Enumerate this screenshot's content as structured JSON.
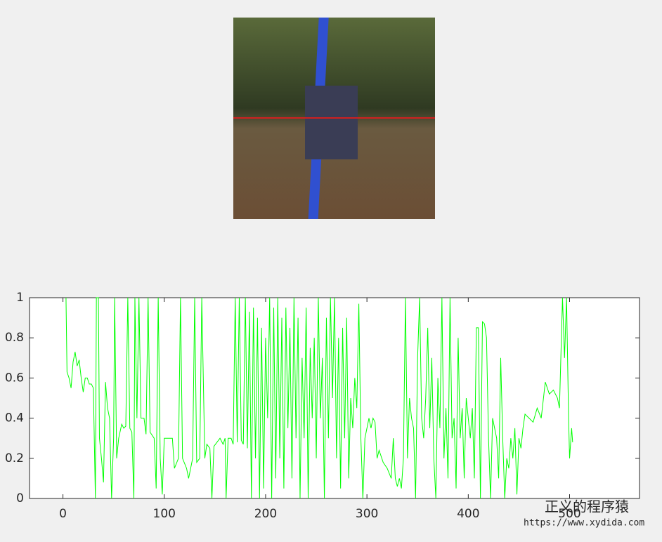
{
  "chart_data": {
    "type": "line",
    "color": "#00ff00",
    "x": [
      3,
      4,
      6,
      8,
      10,
      12,
      14,
      16,
      18,
      20,
      22,
      24,
      26,
      28,
      30,
      32,
      33,
      35,
      36,
      38,
      40,
      42,
      44,
      46,
      48,
      50,
      51,
      53,
      55,
      58,
      60,
      62,
      64,
      66,
      68,
      70,
      71,
      73,
      75,
      77,
      80,
      82,
      84,
      86,
      90,
      92,
      94,
      96,
      98,
      100,
      104,
      108,
      110,
      114,
      116,
      118,
      122,
      124,
      126,
      128,
      130,
      132,
      135,
      137,
      140,
      142,
      145,
      147,
      149,
      152,
      155,
      158,
      160,
      161,
      163,
      166,
      168,
      170,
      172,
      174,
      176,
      178,
      180,
      182,
      184,
      186,
      188,
      190,
      192,
      194,
      196,
      198,
      200,
      202,
      204,
      206,
      208,
      210,
      212,
      214,
      216,
      218,
      220,
      222,
      224,
      226,
      228,
      230,
      232,
      234,
      236,
      238,
      240,
      242,
      244,
      246,
      248,
      250,
      252,
      254,
      256,
      258,
      260,
      262,
      264,
      266,
      268,
      270,
      272,
      274,
      276,
      278,
      280,
      282,
      284,
      286,
      288,
      290,
      292,
      294,
      296,
      298,
      300,
      302,
      304,
      306,
      308,
      310,
      312,
      316,
      320,
      324,
      326,
      328,
      330,
      332,
      334,
      336,
      338,
      340,
      342,
      344,
      346,
      348,
      350,
      352,
      354,
      356,
      358,
      360,
      362,
      364,
      366,
      368,
      370,
      372,
      374,
      376,
      378,
      380,
      382,
      384,
      386,
      388,
      390,
      392,
      394,
      396,
      398,
      400,
      402,
      404,
      406,
      408,
      410,
      412,
      414,
      416,
      418,
      420,
      422,
      424,
      426,
      428,
      430,
      432,
      434,
      436,
      438,
      440,
      442,
      444,
      446,
      448,
      450,
      452,
      454,
      456,
      460,
      464,
      468,
      472,
      476,
      480,
      484,
      488,
      490,
      493,
      495,
      497,
      499,
      500,
      502,
      503
    ],
    "values": [
      1,
      0.63,
      0.6,
      0.55,
      0.68,
      0.73,
      0.66,
      0.69,
      0.6,
      0.53,
      0.6,
      0.6,
      0.57,
      0.57,
      0.55,
      0,
      1,
      1,
      0.3,
      0.2,
      0.08,
      0.58,
      0.45,
      0.4,
      0,
      0.3,
      1,
      0.2,
      0.3,
      0.37,
      0.35,
      0.36,
      1,
      0.35,
      0.33,
      0,
      1,
      0.4,
      1,
      0.4,
      0.4,
      0.32,
      1,
      0.33,
      0.3,
      0.05,
      1,
      0.2,
      0.02,
      0.3,
      0.3,
      0.3,
      0.15,
      0.2,
      1,
      0.2,
      0.15,
      0.1,
      0.15,
      0.2,
      1,
      0.18,
      0.2,
      1,
      0.2,
      0.27,
      0.25,
      0,
      0.26,
      0.28,
      0.3,
      0.27,
      0.3,
      0,
      0.3,
      0.3,
      0.27,
      1,
      0.28,
      1,
      0.29,
      0.27,
      1,
      0.25,
      0.93,
      0,
      0.95,
      0.2,
      0.9,
      0,
      0.85,
      0.05,
      0.8,
      0.4,
      1,
      0,
      0.95,
      0.1,
      1,
      0.2,
      0.9,
      0.05,
      0.95,
      0.35,
      0.85,
      0.1,
      1,
      0.3,
      0.9,
      0,
      0.7,
      0.3,
      0.95,
      0,
      0.75,
      0.4,
      0.8,
      0.2,
      1,
      0.4,
      0.7,
      0,
      0.9,
      0.3,
      1,
      0.5,
      1,
      0.2,
      0.8,
      0.05,
      0.85,
      0.3,
      0.9,
      0.1,
      0.5,
      0.35,
      0.6,
      0.45,
      0.97,
      0.3,
      0,
      0.3,
      0.35,
      0.4,
      0.35,
      0.4,
      0.38,
      0.2,
      0.24,
      0.18,
      0.15,
      0.1,
      0.3,
      0.1,
      0.06,
      0.1,
      0.05,
      0.2,
      1,
      0.2,
      0.5,
      0.4,
      0.35,
      0,
      0.7,
      1,
      0.4,
      0.3,
      0.5,
      0.85,
      0.35,
      0.7,
      0.2,
      0,
      0.6,
      0.35,
      1,
      0.2,
      0.45,
      0.1,
      1,
      0.3,
      0.4,
      0.05,
      0.8,
      0.3,
      0.45,
      0.1,
      0.5,
      0.4,
      0.3,
      0.45,
      0.1,
      0.85,
      0.85,
      0,
      0.88,
      0.87,
      0.8,
      0.3,
      0,
      0.4,
      0.35,
      0.3,
      0.1,
      0.7,
      0.3,
      0,
      0.2,
      0.15,
      0.3,
      0.2,
      0.35,
      0.02,
      0.3,
      0.25,
      0.35,
      0.42,
      0.4,
      0.38,
      0.45,
      0.4,
      0.58,
      0.52,
      0.54,
      0.5,
      0.45,
      1,
      0.7,
      1,
      0.4,
      0.2,
      0.35,
      0.28
    ],
    "xlim": [
      -33,
      569
    ],
    "ylim": [
      0,
      1
    ],
    "xticks": [
      0,
      100,
      200,
      300,
      400,
      500
    ],
    "yticks": [
      0,
      0.2,
      0.4,
      0.6,
      0.8,
      1
    ],
    "watermark": [
      "正义的程序猿",
      "https://www.xydida.com"
    ]
  }
}
